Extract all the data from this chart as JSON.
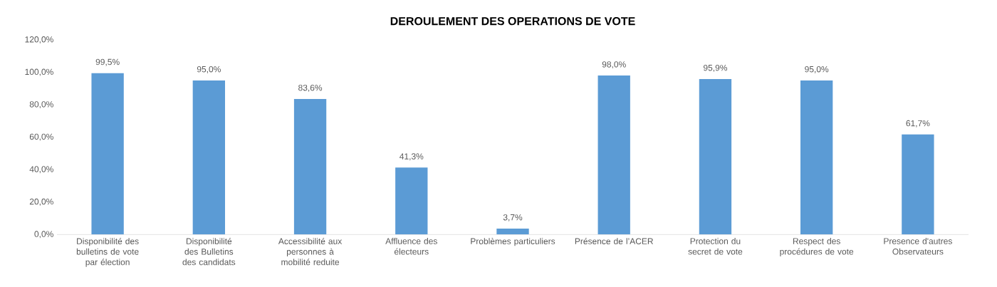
{
  "chart_data": {
    "type": "bar",
    "title": "DEROULEMENT DES OPERATIONS DE VOTE",
    "categories": [
      "Disponibilité des bulletins de vote par élection",
      "Disponibilité des Bulletins des candidats",
      "Accessibilité aux personnes à mobilité reduite",
      "Affluence des électeurs",
      "Problèmes particuliers",
      "Présence de l’ACER",
      "Protection du secret de vote",
      "Respect des procédures de vote",
      "Presence d'autres Observateurs"
    ],
    "values": [
      99.5,
      95.0,
      83.6,
      41.3,
      3.7,
      98.0,
      95.9,
      95.0,
      61.7
    ],
    "value_labels": [
      "99,5%",
      "95,0%",
      "83,6%",
      "41,3%",
      "3,7%",
      "98,0%",
      "95,9%",
      "95,0%",
      "61,7%"
    ],
    "color": "#5b9bd5",
    "ylim": [
      0,
      120
    ],
    "yticks": [
      {
        "value": 0,
        "label": "0,0%"
      },
      {
        "value": 20,
        "label": "20,0%"
      },
      {
        "value": 40,
        "label": "40,0%"
      },
      {
        "value": 60,
        "label": "60,0%"
      },
      {
        "value": 80,
        "label": "80,0%"
      },
      {
        "value": 100,
        "label": "100,0%"
      },
      {
        "value": 120,
        "label": "120,0%"
      }
    ],
    "grid": false
  }
}
